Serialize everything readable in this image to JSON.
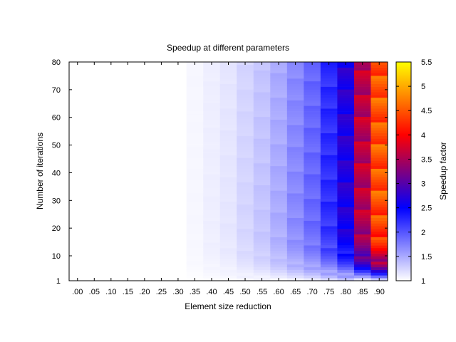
{
  "chart_data": {
    "type": "heatmap",
    "title": "Speedup at different parameters",
    "xlabel": "Element size reduction",
    "ylabel": "Number of iterations",
    "colorbar_label": "Speedup factor",
    "x_ticks": [
      ".00",
      ".05",
      ".10",
      ".15",
      ".20",
      ".25",
      ".30",
      ".35",
      ".40",
      ".45",
      ".50",
      ".55",
      ".60",
      ".65",
      ".70",
      ".75",
      ".80",
      ".85",
      ".90"
    ],
    "x_values": [
      0.0,
      0.05,
      0.1,
      0.15,
      0.2,
      0.25,
      0.3,
      0.35,
      0.4,
      0.45,
      0.5,
      0.55,
      0.6,
      0.65,
      0.7,
      0.75,
      0.8,
      0.85,
      0.9
    ],
    "y_ticks": [
      "1",
      "10",
      "20",
      "30",
      "40",
      "50",
      "60",
      "70",
      "80"
    ],
    "ylim": [
      1,
      80
    ],
    "colorbar_ticks": [
      "1",
      "1.5",
      "2",
      "2.5",
      "3",
      "3.5",
      "4",
      "4.5",
      "5",
      "5.5"
    ],
    "color_range": [
      1,
      5.5
    ],
    "colormap": [
      "#ffffff",
      "#0000ff",
      "#ff0000",
      "#ffff00"
    ],
    "column_speedup_estimate": [
      1.0,
      1.0,
      1.0,
      1.0,
      1.0,
      1.0,
      1.0,
      1.05,
      1.1,
      1.15,
      1.25,
      1.35,
      1.5,
      1.7,
      1.9,
      2.25,
      2.7,
      3.6,
      4.5
    ]
  }
}
